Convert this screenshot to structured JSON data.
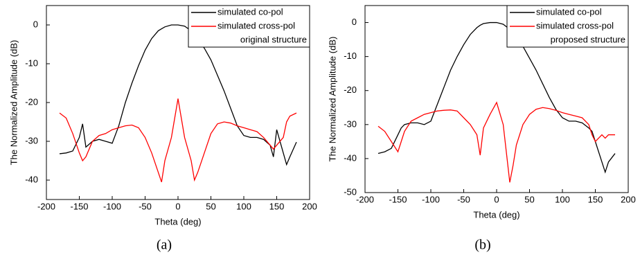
{
  "chart_data": [
    {
      "type": "line",
      "caption": "(a)",
      "x_label": "Theta (deg)",
      "y_label": "The Normalized Amplitude (dB)",
      "legend_note": "original structure",
      "legend_note_color": "#0000ff",
      "legend": "upper right",
      "x": [
        -180,
        -170,
        -160,
        -150,
        -145,
        -140,
        -130,
        -120,
        -110,
        -100,
        -90,
        -80,
        -70,
        -60,
        -50,
        -40,
        -30,
        -25,
        -20,
        -10,
        0,
        10,
        20,
        25,
        30,
        40,
        50,
        60,
        70,
        80,
        90,
        100,
        110,
        120,
        130,
        140,
        145,
        150,
        160,
        165,
        170,
        180
      ],
      "series": [
        {
          "name": "simulated co-pol",
          "color": "#000000",
          "values": [
            -33.2,
            -33,
            -32.5,
            -29,
            -25.5,
            -31.5,
            -30,
            -29.5,
            -30,
            -30.5,
            -26,
            -20,
            -15,
            -10.5,
            -6.5,
            -3.5,
            -1.5,
            -1,
            -0.5,
            0,
            0,
            -0.3,
            -1.5,
            -2.4,
            -3.5,
            -6,
            -9,
            -13,
            -17,
            -21.5,
            -26,
            -28.5,
            -29,
            -29,
            -29.5,
            -31,
            -34,
            -27,
            -33,
            -36,
            -34,
            -30.2
          ]
        },
        {
          "name": "simulated cross-pol",
          "color": "#ff0000",
          "values": [
            -22.7,
            -24,
            -28,
            -33,
            -35,
            -34,
            -30,
            -28.5,
            -28,
            -27,
            -26.5,
            -26,
            -25.8,
            -26.5,
            -29,
            -33,
            -38,
            -40.5,
            -35,
            -29,
            -19,
            -29,
            -35,
            -40,
            -38,
            -33,
            -28,
            -25.5,
            -25,
            -25.3,
            -26,
            -26.5,
            -27,
            -27.5,
            -29,
            -31,
            -32,
            -31,
            -29,
            -25,
            -23.5,
            -22.7
          ]
        }
      ],
      "xlim": [
        -200,
        200
      ],
      "xticks": [
        -200,
        -150,
        -100,
        -50,
        0,
        50,
        100,
        150,
        200
      ],
      "ylim": [
        -45,
        5
      ],
      "yticks": [
        -40,
        -30,
        -20,
        -10,
        0
      ]
    },
    {
      "type": "line",
      "caption": "(b)",
      "x_label": "Theta (deg)",
      "y_label": "The Normalized Amplitude (dB)",
      "legend_note": "proposed structure",
      "legend_note_color": "#0000ff",
      "legend": "upper right",
      "x": [
        -180,
        -170,
        -160,
        -150,
        -145,
        -140,
        -130,
        -120,
        -110,
        -100,
        -90,
        -80,
        -70,
        -60,
        -50,
        -40,
        -30,
        -25,
        -20,
        -10,
        0,
        10,
        20,
        25,
        30,
        40,
        50,
        60,
        70,
        80,
        90,
        100,
        110,
        120,
        130,
        140,
        145,
        150,
        160,
        165,
        170,
        180
      ],
      "series": [
        {
          "name": "simulated co-pol",
          "color": "#000000",
          "values": [
            -38.5,
            -38,
            -37,
            -33,
            -31,
            -30,
            -29.5,
            -29.5,
            -30,
            -29,
            -24,
            -19,
            -14,
            -10,
            -6.5,
            -3.5,
            -1.5,
            -0.8,
            -0.3,
            0,
            0,
            -0.5,
            -2,
            -3,
            -4,
            -7,
            -10.5,
            -14,
            -18,
            -22,
            -25.5,
            -28,
            -29,
            -29,
            -29.5,
            -31,
            -32,
            -35,
            -41,
            -44,
            -41,
            -38.5
          ]
        },
        {
          "name": "simulated cross-pol",
          "color": "#ff0000",
          "values": [
            -30.5,
            -32,
            -35,
            -38,
            -35,
            -32,
            -29,
            -28,
            -27,
            -26.5,
            -26,
            -25.8,
            -25.7,
            -26,
            -28,
            -30,
            -33,
            -39,
            -31,
            -27,
            -23.5,
            -30,
            -47,
            -42,
            -36,
            -30,
            -27,
            -25.5,
            -25,
            -25.3,
            -25.8,
            -26.5,
            -27,
            -27.5,
            -28,
            -30,
            -33,
            -35,
            -33,
            -34,
            -33,
            -33
          ]
        }
      ],
      "xlim": [
        -200,
        200
      ],
      "xticks": [
        -200,
        -150,
        -100,
        -50,
        0,
        50,
        100,
        150,
        200
      ],
      "ylim": [
        -50,
        5
      ],
      "yticks": [
        -50,
        -40,
        -30,
        -20,
        -10,
        0
      ]
    }
  ]
}
